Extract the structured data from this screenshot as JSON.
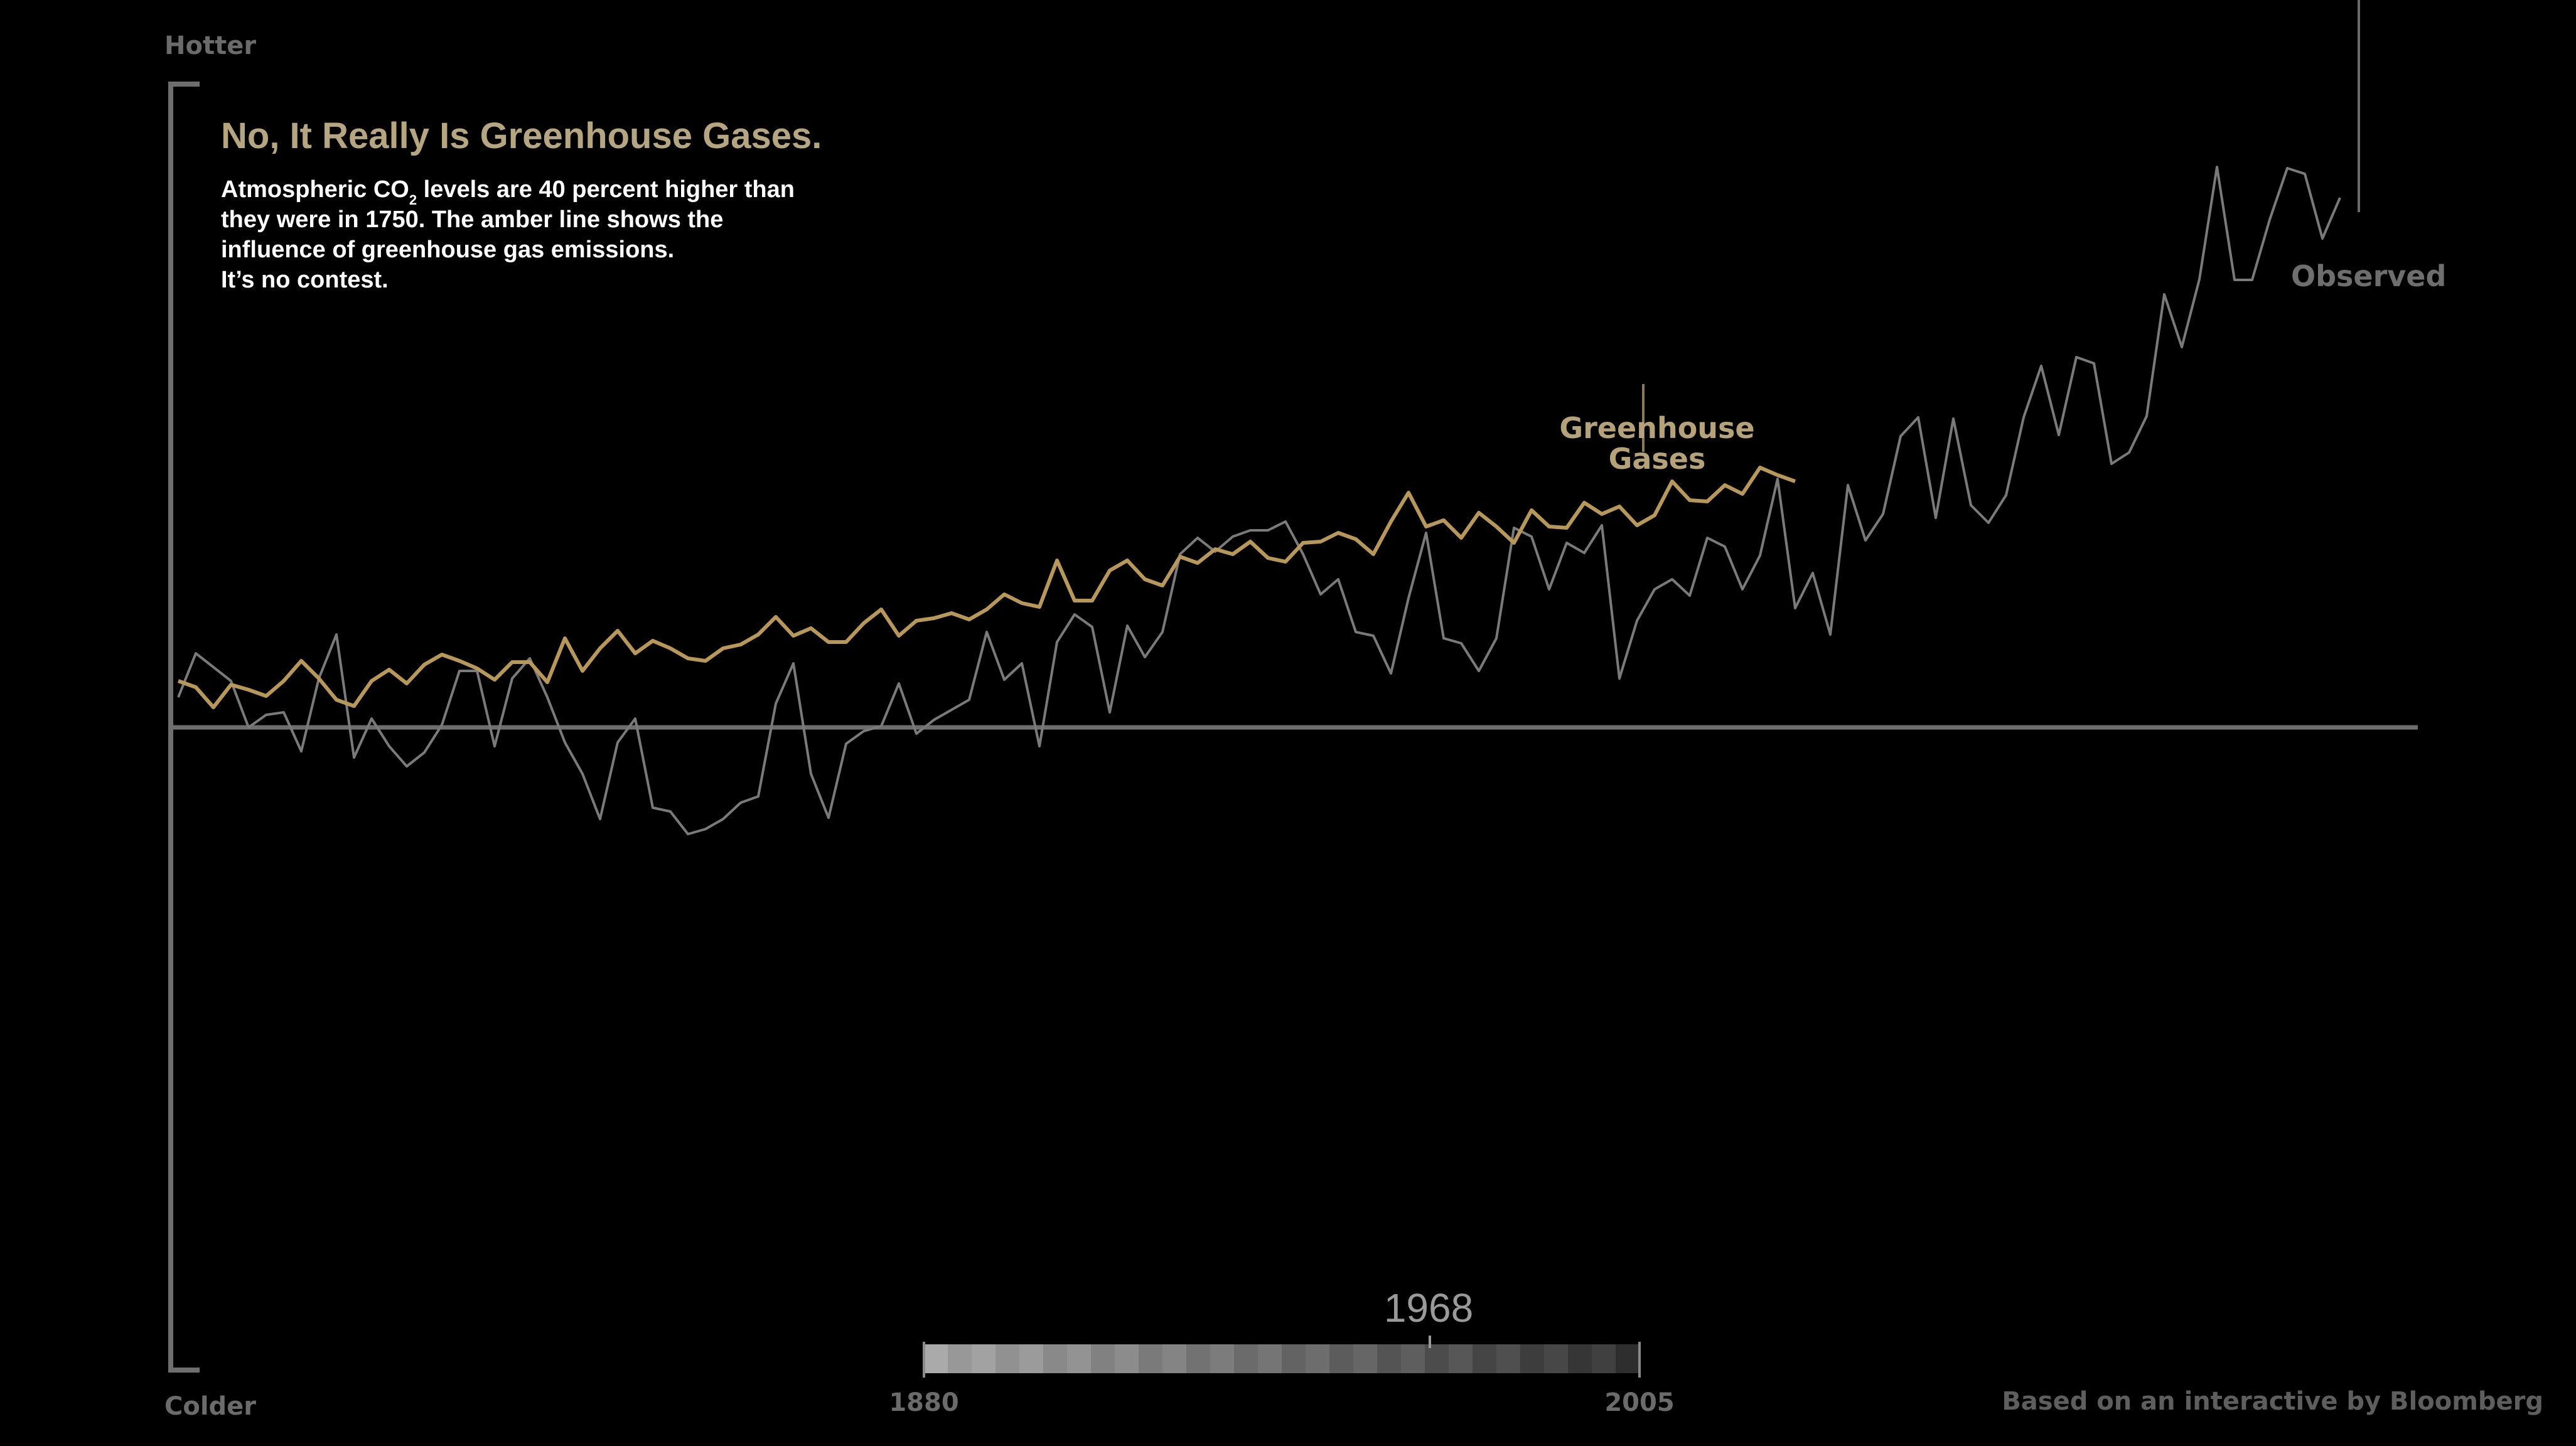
{
  "axis": {
    "top_label": "Hotter",
    "bottom_label": "Colder"
  },
  "header": {
    "title": "No, It Really Is Greenhouse Gases.",
    "body_line1_a": "Atmospheric CO",
    "body_line1_sub": "2",
    "body_line1_b": " levels are 40 percent higher than",
    "body_line2": "they were in 1750.  The amber line shows the",
    "body_line3": "influence of greenhouse gas emissions.",
    "body_line4": "It’s no contest."
  },
  "labels": {
    "greenhouse_1": "Greenhouse",
    "greenhouse_2": "Gases",
    "observed": "Observed"
  },
  "scrubber": {
    "current_year": "1968",
    "start_label": "1880",
    "end_label": "2005"
  },
  "credit": "Based on an interactive by Bloomberg",
  "colors": {
    "background": "#000000",
    "greenhouse": "#b8975a",
    "observed": "#7a7a7a",
    "axis": "#6e6e6e"
  },
  "chart_data": {
    "type": "line",
    "x_start": 1880,
    "y_range": [
      -1.0,
      1.0
    ],
    "zero_line": true,
    "series": [
      {
        "name": "Greenhouse Gases",
        "color": "#b8975a",
        "start_year": 1880,
        "values": [
          0.074,
          0.064,
          0.032,
          0.068,
          0.06,
          0.05,
          0.074,
          0.106,
          0.078,
          0.044,
          0.034,
          0.074,
          0.092,
          0.07,
          0.1,
          0.116,
          0.106,
          0.094,
          0.076,
          0.104,
          0.104,
          0.072,
          0.142,
          0.09,
          0.126,
          0.154,
          0.118,
          0.138,
          0.126,
          0.11,
          0.106,
          0.126,
          0.132,
          0.148,
          0.176,
          0.146,
          0.158,
          0.136,
          0.136,
          0.166,
          0.188,
          0.146,
          0.17,
          0.174,
          0.182,
          0.172,
          0.188,
          0.212,
          0.198,
          0.192,
          0.266,
          0.202,
          0.202,
          0.25,
          0.266,
          0.236,
          0.226,
          0.272,
          0.262,
          0.284,
          0.276,
          0.296,
          0.27,
          0.264,
          0.294,
          0.296,
          0.31,
          0.3,
          0.276,
          0.328,
          0.374,
          0.32,
          0.33,
          0.302,
          0.342,
          0.32,
          0.294,
          0.346,
          0.32,
          0.318,
          0.358,
          0.34,
          0.352,
          0.322,
          0.338,
          0.392,
          0.362,
          0.36,
          0.386,
          0.372,
          0.414,
          0.402,
          0.392
        ]
      },
      {
        "name": "Observed",
        "color": "#7a7a7a",
        "start_year": 1880,
        "values": [
          0.048,
          0.118,
          0.096,
          0.074,
          0.0,
          0.02,
          0.024,
          -0.038,
          0.078,
          0.148,
          -0.048,
          0.014,
          -0.03,
          -0.062,
          -0.04,
          0.004,
          0.09,
          0.09,
          -0.03,
          0.078,
          0.11,
          0.048,
          -0.024,
          -0.074,
          -0.146,
          -0.024,
          0.014,
          -0.128,
          -0.134,
          -0.17,
          -0.162,
          -0.146,
          -0.12,
          -0.11,
          0.038,
          0.102,
          -0.074,
          -0.144,
          -0.026,
          -0.006,
          0.002,
          0.07,
          -0.01,
          0.012,
          0.028,
          0.044,
          0.152,
          0.076,
          0.102,
          -0.03,
          0.136,
          0.18,
          0.16,
          0.024,
          0.162,
          0.112,
          0.152,
          0.276,
          0.302,
          0.28,
          0.304,
          0.314,
          0.314,
          0.328,
          0.276,
          0.212,
          0.236,
          0.152,
          0.146,
          0.086,
          0.206,
          0.31,
          0.142,
          0.134,
          0.09,
          0.142,
          0.318,
          0.304,
          0.22,
          0.294,
          0.278,
          0.322,
          0.078,
          0.17,
          0.22,
          0.236,
          0.21,
          0.302,
          0.288,
          0.22,
          0.274,
          0.396,
          0.19,
          0.246,
          0.148,
          0.386,
          0.298,
          0.34,
          0.464,
          0.494,
          0.334,
          0.492,
          0.354,
          0.326,
          0.37,
          0.494,
          0.576,
          0.466,
          0.59,
          0.58,
          0.42,
          0.438,
          0.496,
          0.69,
          0.606,
          0.714,
          0.893,
          0.713,
          0.713,
          0.809,
          0.891,
          0.882,
          0.779,
          0.844
        ]
      }
    ]
  }
}
